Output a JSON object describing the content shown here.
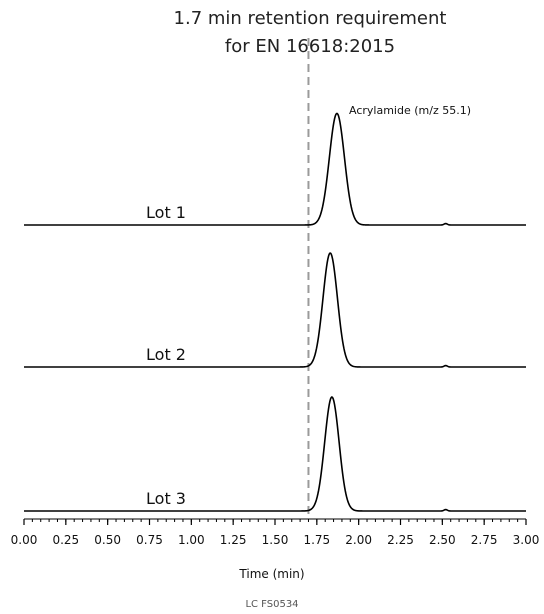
{
  "chart_data": {
    "type": "line",
    "title": [
      "1.7 min retention requirement",
      "for EN 16618:2015"
    ],
    "xlabel": "Time (min)",
    "ylabel": "",
    "xlim": [
      0.0,
      3.0
    ],
    "x_ticks": [
      "0.00",
      "0.25",
      "0.50",
      "0.75",
      "1.00",
      "1.25",
      "1.50",
      "1.75",
      "2.00",
      "2.25",
      "2.50",
      "2.75",
      "3.00"
    ],
    "x_tick_values": [
      0.0,
      0.25,
      0.5,
      0.75,
      1.0,
      1.25,
      1.5,
      1.75,
      2.0,
      2.25,
      2.5,
      2.75,
      3.0
    ],
    "x_minor_step": 0.05,
    "grid": false,
    "reference_line": {
      "x": 1.7,
      "style": "dashed",
      "color": "#9a9a9a"
    },
    "peak_annotation": "Acrylamide (m/z 55.1)",
    "series": [
      {
        "name": "Lot 1",
        "peak_time": 1.87,
        "peak_width": 0.045,
        "peak_height": 0.93,
        "minor_peak_time": 2.52
      },
      {
        "name": "Lot 2",
        "peak_time": 1.83,
        "peak_width": 0.043,
        "peak_height": 0.95,
        "minor_peak_time": 2.52
      },
      {
        "name": "Lot 3",
        "peak_time": 1.84,
        "peak_width": 0.043,
        "peak_height": 0.95,
        "minor_peak_time": 2.52
      }
    ],
    "footer_code": "LC FS0534",
    "line_color": "#000000"
  }
}
